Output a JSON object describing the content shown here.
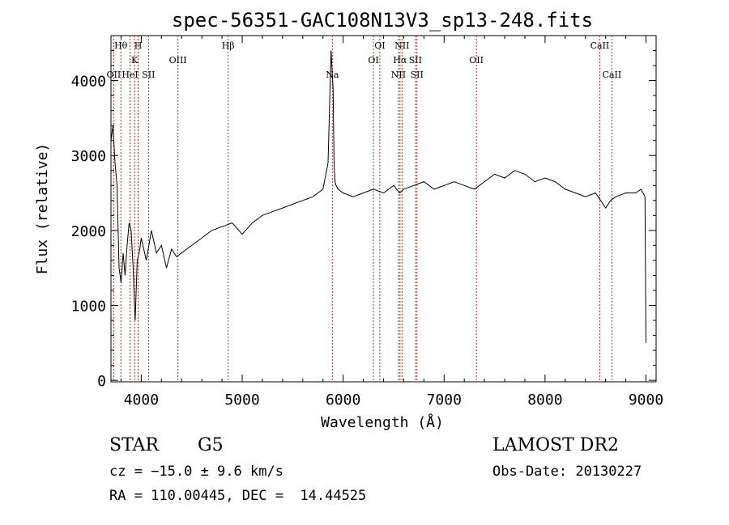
{
  "chart_data": {
    "type": "line",
    "title": "spec-56351-GAC108N13V3_sp13-248.fits",
    "xlabel": "Wavelength (Å)",
    "ylabel": "Flux (relative)",
    "xlim": [
      3700,
      9100
    ],
    "ylim": [
      -20,
      4600
    ],
    "x_ticks": [
      4000,
      5000,
      6000,
      7000,
      8000,
      9000
    ],
    "x_tick_labels": [
      "4000",
      "5000",
      "6000",
      "7000",
      "8000",
      "9000"
    ],
    "y_ticks": [
      0,
      1000,
      2000,
      3000,
      4000
    ],
    "y_tick_labels": [
      "0",
      "1000",
      "2000",
      "3000",
      "4000"
    ],
    "series": [
      {
        "x": [
          3700,
          3720,
          3740,
          3760,
          3780,
          3800,
          3820,
          3840,
          3860,
          3880,
          3900,
          3920,
          3940,
          3960,
          3980,
          4000,
          4050,
          4100,
          4150,
          4200,
          4250,
          4300,
          4350,
          4400,
          4450,
          4500,
          4600,
          4700,
          4800,
          4900,
          5000,
          5100,
          5200,
          5300,
          5400,
          5500,
          5600,
          5700,
          5800,
          5850,
          5880,
          5900,
          5910,
          5920,
          5930,
          5950,
          6000,
          6100,
          6200,
          6300,
          6400,
          6500,
          6560,
          6600,
          6700,
          6800,
          6900,
          7000,
          7100,
          7200,
          7300,
          7400,
          7500,
          7600,
          7700,
          7800,
          7900,
          8000,
          8100,
          8200,
          8300,
          8400,
          8500,
          8550,
          8600,
          8650,
          8700,
          8800,
          8900,
          8950,
          8990,
          9000
        ],
        "y": [
          3200,
          3400,
          2900,
          2600,
          1500,
          1300,
          1700,
          1400,
          1800,
          2100,
          2000,
          1500,
          800,
          1600,
          1700,
          1900,
          1600,
          2000,
          1700,
          1800,
          1500,
          1750,
          1650,
          1700,
          1750,
          1800,
          1900,
          2000,
          2050,
          2100,
          1950,
          2100,
          2200,
          2250,
          2300,
          2350,
          2400,
          2450,
          2550,
          2900,
          4400,
          3900,
          2900,
          2650,
          2600,
          2550,
          2500,
          2450,
          2500,
          2550,
          2500,
          2600,
          2500,
          2550,
          2600,
          2650,
          2550,
          2600,
          2650,
          2600,
          2550,
          2650,
          2750,
          2700,
          2800,
          2750,
          2650,
          2700,
          2650,
          2550,
          2500,
          2450,
          2500,
          2400,
          2300,
          2400,
          2450,
          2500,
          2500,
          2550,
          2450,
          500
        ],
        "color": "#000000"
      }
    ],
    "line_markers": [
      {
        "label": "Hθ",
        "x": 3798,
        "row": 0
      },
      {
        "label": "H",
        "x": 3969,
        "row": 0
      },
      {
        "label": "Hβ",
        "x": 4861,
        "row": 0
      },
      {
        "label": "OI",
        "x": 6363,
        "row": 0
      },
      {
        "label": "NII",
        "x": 6583,
        "row": 0
      },
      {
        "label": "CaII",
        "x": 8542,
        "row": 0
      },
      {
        "label": "K",
        "x": 3934,
        "row": 1
      },
      {
        "label": "OIII",
        "x": 4363,
        "row": 1
      },
      {
        "label": "OI",
        "x": 6300,
        "row": 1
      },
      {
        "label": "Hα",
        "x": 6563,
        "row": 1
      },
      {
        "label": "SII",
        "x": 6716,
        "row": 1
      },
      {
        "label": "OII",
        "x": 7320,
        "row": 1
      },
      {
        "label": "OII",
        "x": 3727,
        "row": 2
      },
      {
        "label": "HeI",
        "x": 3889,
        "row": 2
      },
      {
        "label": "SII",
        "x": 4072,
        "row": 2
      },
      {
        "label": "Na",
        "x": 5893,
        "row": 2
      },
      {
        "label": "NII",
        "x": 6548,
        "row": 2
      },
      {
        "label": "SII",
        "x": 6731,
        "row": 2
      },
      {
        "label": "CaII",
        "x": 8662,
        "row": 2
      }
    ],
    "grid": false
  },
  "footer": {
    "object_class": "STAR",
    "subclass": "G5",
    "survey": "LAMOST DR2",
    "cz_text": "cz = −15.0 ± 9.6 km/s",
    "obs_date_text": "Obs-Date: 20130227",
    "coords_text": "RA = 110.00445, DEC =  14.44525"
  }
}
